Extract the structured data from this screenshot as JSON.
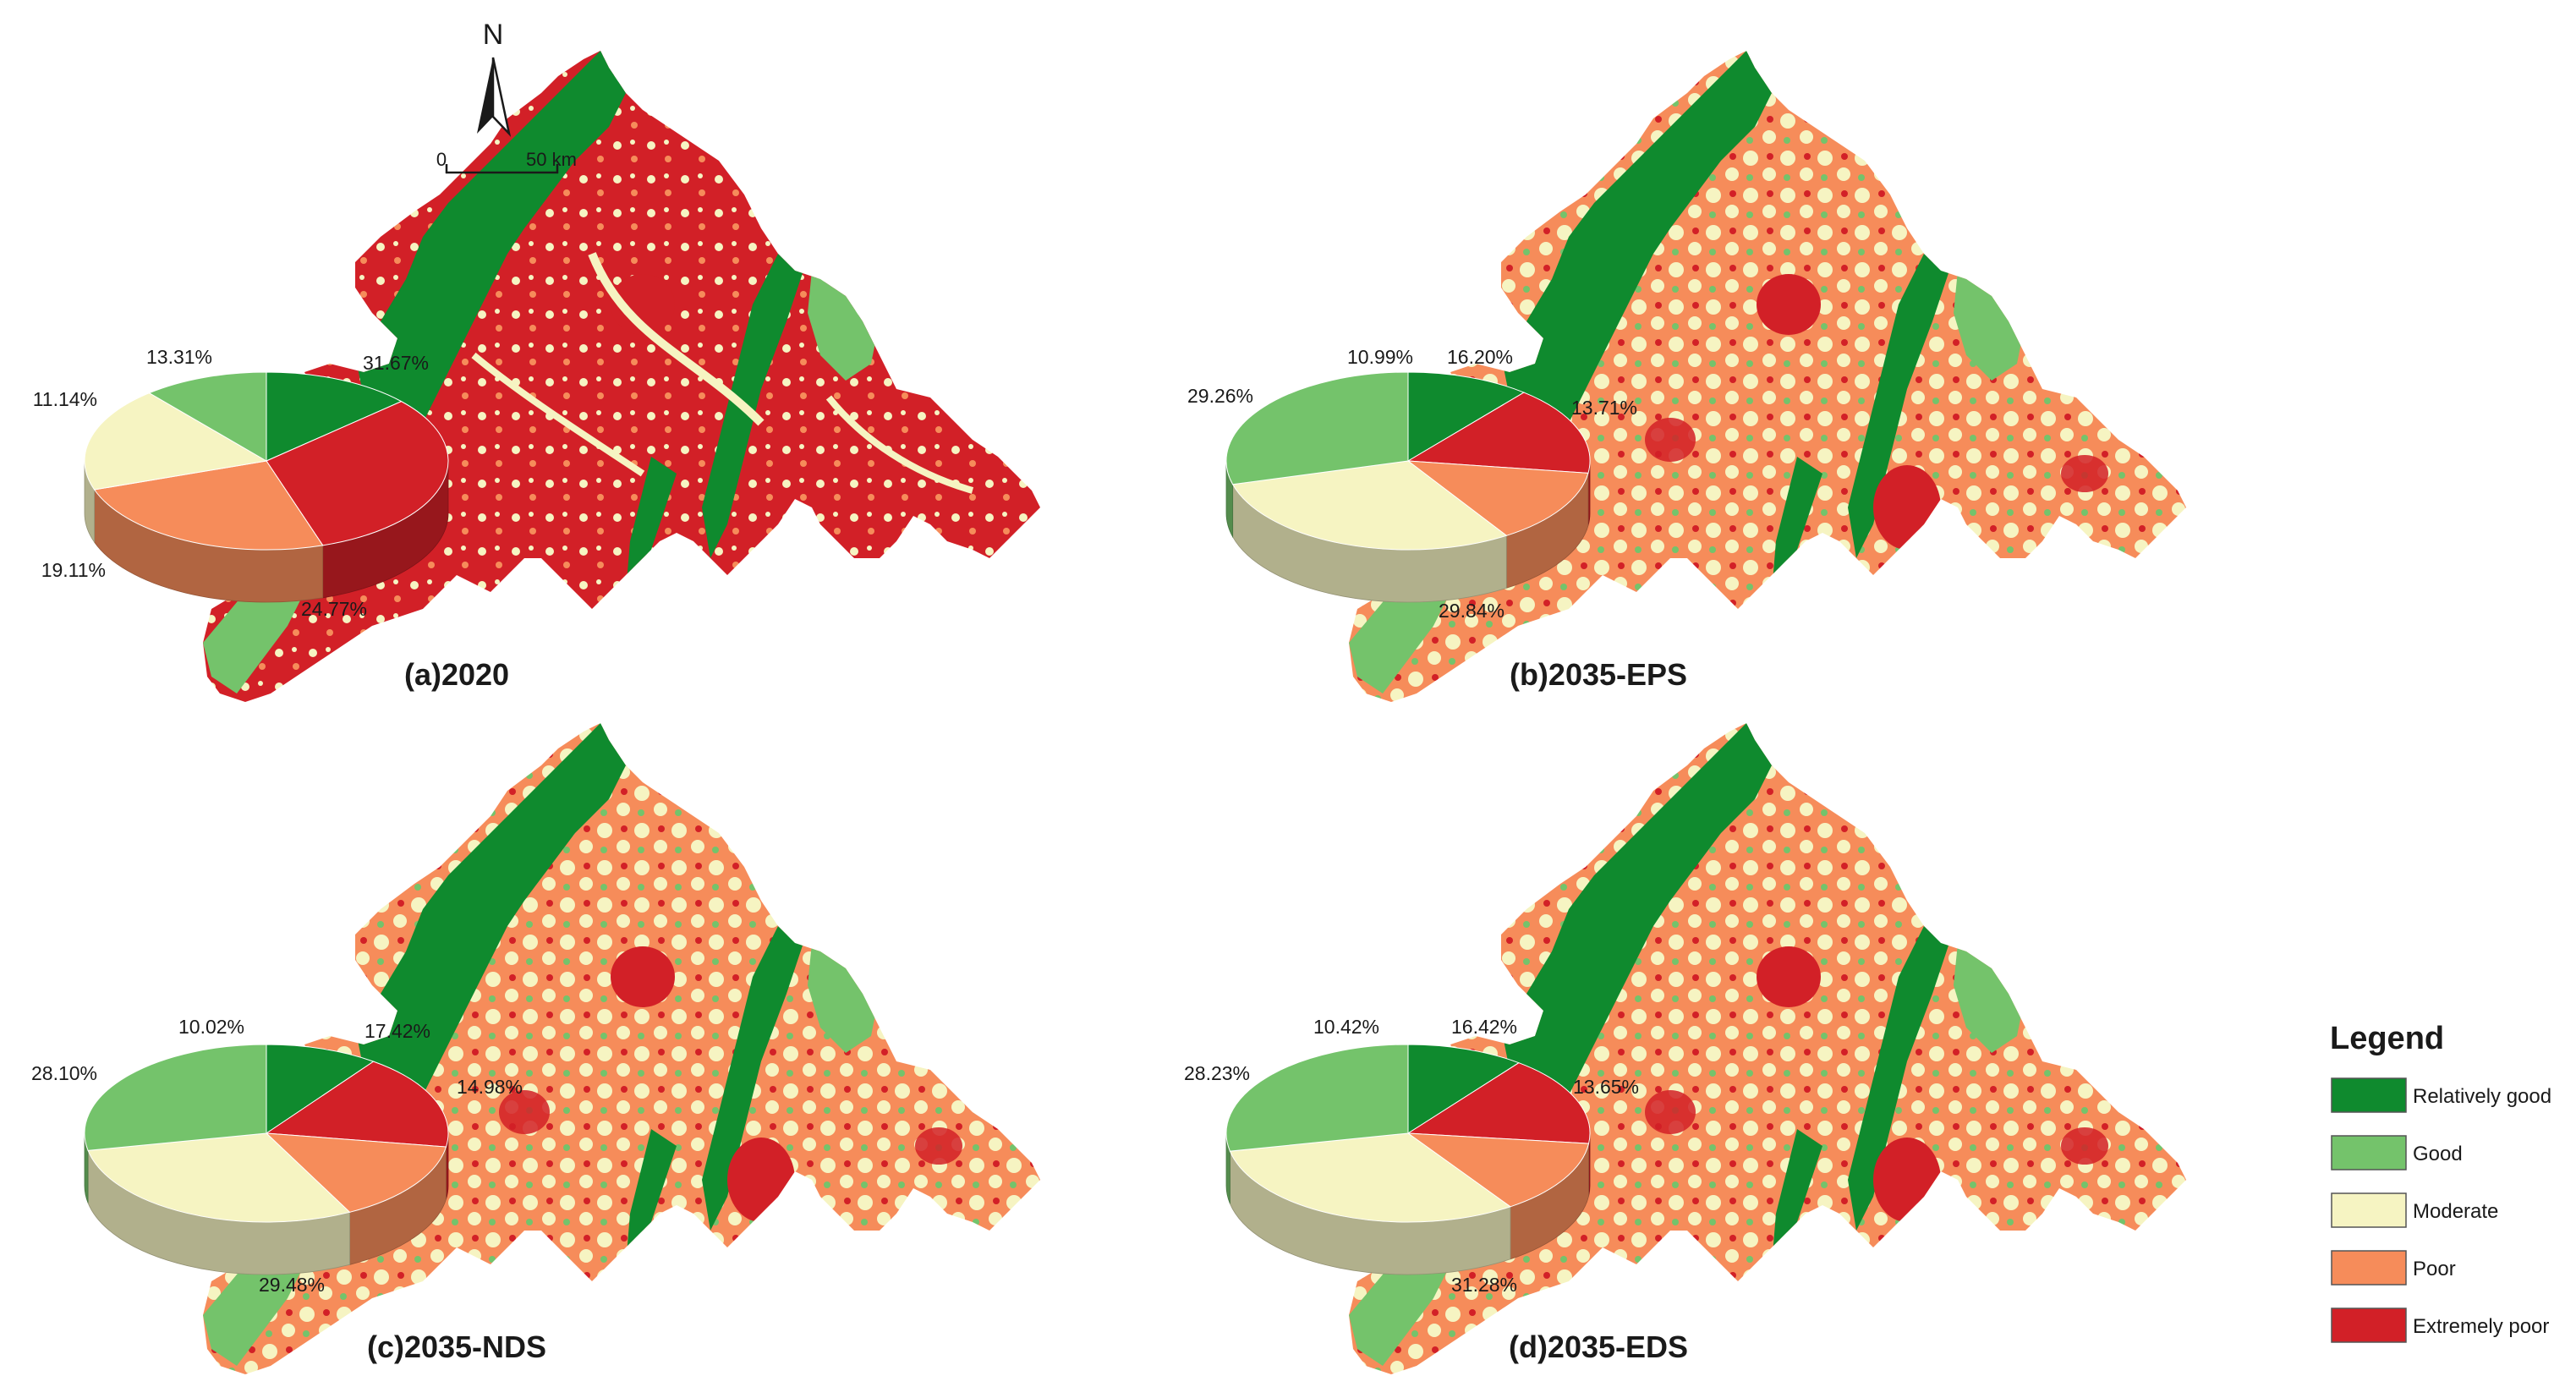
{
  "colors": {
    "relatively_good": "#0f8a2e",
    "good": "#74c36b",
    "moderate": "#f6f4c2",
    "poor": "#f68c5a",
    "extremely_poor": "#d22027"
  },
  "north_arrow": {
    "label": "N"
  },
  "scale_bar": {
    "start": "0",
    "end": "50 km"
  },
  "legend": {
    "title": "Legend",
    "items": [
      {
        "key": "relatively_good",
        "label": "Relatively good",
        "color": "#0f8a2e"
      },
      {
        "key": "good",
        "label": "Good",
        "color": "#74c36b"
      },
      {
        "key": "moderate",
        "label": "Moderate",
        "color": "#f6f4c2"
      },
      {
        "key": "poor",
        "label": "Poor",
        "color": "#f68c5a"
      },
      {
        "key": "extremely_poor",
        "label": "Extremely poor",
        "color": "#d22027"
      }
    ]
  },
  "panels": [
    {
      "title": "(a)2020",
      "dominant": "extremely_poor",
      "labels": {
        "relatively_good": "13.31%",
        "good": "11.14%",
        "moderate": "19.11%",
        "poor": "24.77%",
        "extremely_poor": "31.67%"
      }
    },
    {
      "title": "(b)2035-EPS",
      "dominant": "mixed",
      "labels": {
        "relatively_good": "10.99%",
        "good": "29.26%",
        "moderate": "29.84%",
        "poor": "13.71%",
        "extremely_poor": "16.20%"
      }
    },
    {
      "title": "(c)2035-NDS",
      "dominant": "mixed",
      "labels": {
        "relatively_good": "10.02%",
        "good": "28.10%",
        "moderate": "29.48%",
        "poor": "14.98%",
        "extremely_poor": "17.42%"
      }
    },
    {
      "title": "(d)2035-EDS",
      "dominant": "mixed",
      "labels": {
        "relatively_good": "10.42%",
        "good": "28.23%",
        "moderate": "31.28%",
        "poor": "13.65%",
        "extremely_poor": "16.42%"
      }
    }
  ],
  "chart_data": [
    {
      "type": "pie",
      "title": "(a)2020",
      "categories": [
        "Relatively good",
        "Extremely poor",
        "Poor",
        "Moderate",
        "Good"
      ],
      "values": [
        13.31,
        31.67,
        24.77,
        19.11,
        11.14
      ]
    },
    {
      "type": "pie",
      "title": "(b)2035-EPS",
      "categories": [
        "Relatively good",
        "Extremely poor",
        "Poor",
        "Moderate",
        "Good"
      ],
      "values": [
        10.99,
        16.2,
        13.71,
        29.84,
        29.26
      ]
    },
    {
      "type": "pie",
      "title": "(c)2035-NDS",
      "categories": [
        "Relatively good",
        "Extremely poor",
        "Poor",
        "Moderate",
        "Good"
      ],
      "values": [
        10.02,
        17.42,
        14.98,
        29.48,
        28.1
      ]
    },
    {
      "type": "pie",
      "title": "(d)2035-EDS",
      "categories": [
        "Relatively good",
        "Extremely poor",
        "Poor",
        "Moderate",
        "Good"
      ],
      "values": [
        10.42,
        16.42,
        13.65,
        31.28,
        28.23
      ]
    }
  ]
}
